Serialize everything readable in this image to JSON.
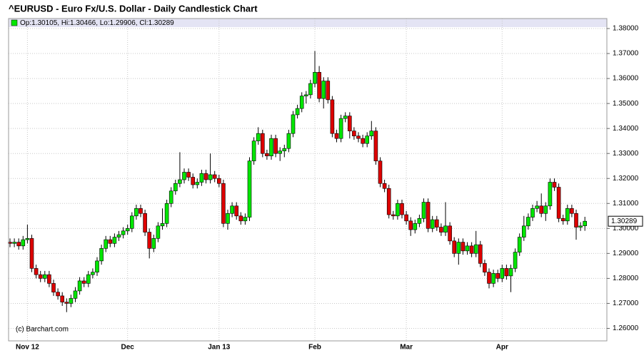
{
  "chart_data": {
    "type": "candlestick",
    "title": "^EURUSD - Euro Fx/U.S. Dollar - Daily Candlestick Chart",
    "legend_label": "Op:1.30105, Hi:1.30466, Lo:1.29906, Cl:1.30289",
    "credit": "(c) Barchart.com",
    "up_color": "#00e600",
    "down_color": "#dd0000",
    "ylim": [
      1.255,
      1.384
    ],
    "yticks": [
      {
        "value": 1.26,
        "label": "1.26000"
      },
      {
        "value": 1.27,
        "label": "1.27000"
      },
      {
        "value": 1.28,
        "label": "1.28000"
      },
      {
        "value": 1.29,
        "label": "1.29000"
      },
      {
        "value": 1.3,
        "label": "1.30000"
      },
      {
        "value": 1.31,
        "label": "1.31000"
      },
      {
        "value": 1.32,
        "label": "1.32000"
      },
      {
        "value": 1.33,
        "label": "1.33000"
      },
      {
        "value": 1.34,
        "label": "1.34000"
      },
      {
        "value": 1.35,
        "label": "1.35000"
      },
      {
        "value": 1.36,
        "label": "1.36000"
      },
      {
        "value": 1.37,
        "label": "1.37000"
      },
      {
        "value": 1.38,
        "label": "1.38000"
      }
    ],
    "grid": true,
    "categories": [
      null,
      null,
      null,
      null,
      "Nov 12",
      null,
      null,
      null,
      null,
      null,
      null,
      null,
      null,
      null,
      null,
      null,
      null,
      null,
      null,
      null,
      null,
      null,
      null,
      null,
      null,
      null,
      null,
      "Dec",
      null,
      null,
      null,
      null,
      null,
      null,
      null,
      null,
      null,
      null,
      null,
      null,
      null,
      null,
      null,
      null,
      null,
      null,
      null,
      null,
      "Jan 13",
      null,
      null,
      null,
      null,
      null,
      null,
      null,
      null,
      null,
      null,
      null,
      null,
      null,
      null,
      null,
      null,
      null,
      null,
      null,
      null,
      null,
      "Feb",
      null,
      null,
      null,
      null,
      null,
      null,
      null,
      null,
      null,
      null,
      null,
      null,
      null,
      null,
      null,
      null,
      null,
      null,
      null,
      null,
      "Mar",
      null,
      null,
      null,
      null,
      null,
      null,
      null,
      null,
      null,
      null,
      null,
      null,
      null,
      null,
      null,
      null,
      null,
      null,
      null,
      null,
      null,
      "Apr",
      null,
      null,
      null,
      null,
      null,
      null,
      null,
      null,
      null,
      null,
      null,
      null,
      null,
      null,
      null,
      null,
      null,
      null,
      null
    ],
    "open": [
      1.2945,
      1.294,
      1.2945,
      1.293,
      1.2955,
      1.296,
      1.284,
      1.2815,
      1.28,
      1.2815,
      1.278,
      1.2745,
      1.273,
      1.2705,
      1.27,
      1.272,
      1.275,
      1.279,
      1.278,
      1.2815,
      1.2825,
      1.287,
      1.292,
      1.2955,
      1.294,
      1.2965,
      1.2975,
      1.299,
      1.3,
      1.305,
      1.308,
      1.306,
      1.2985,
      1.292,
      1.296,
      1.301,
      1.302,
      1.31,
      1.315,
      1.318,
      1.3195,
      1.3225,
      1.3205,
      1.3175,
      1.3185,
      1.322,
      1.3195,
      1.3215,
      1.32,
      1.318,
      1.302,
      1.306,
      1.309,
      1.305,
      1.303,
      1.3045,
      1.327,
      1.335,
      1.338,
      1.33,
      1.329,
      1.336,
      1.33,
      1.331,
      1.332,
      1.338,
      1.3455,
      1.348,
      1.353,
      1.3535,
      1.358,
      1.3625,
      1.352,
      1.359,
      1.3515,
      1.338,
      1.336,
      1.344,
      1.345,
      1.339,
      1.337,
      1.336,
      1.334,
      1.337,
      1.339,
      1.327,
      1.318,
      1.316,
      1.3055,
      1.305,
      1.31,
      1.3055,
      1.303,
      1.2995,
      1.302,
      1.304,
      1.3105,
      1.3,
      1.3035,
      1.3005,
      1.2985,
      1.301,
      1.295,
      1.29,
      1.2945,
      1.291,
      1.293,
      1.29,
      1.2935,
      1.286,
      1.2825,
      1.278,
      1.282,
      1.28,
      1.284,
      1.281,
      1.284,
      1.2905,
      1.2965,
      1.301,
      1.3045,
      1.308,
      1.309,
      1.306,
      1.309,
      1.3185,
      1.3165,
      1.304,
      1.303,
      1.308,
      1.306,
      1.3005,
      1.30105
    ],
    "high": [
      1.296,
      1.296,
      1.296,
      1.297,
      1.3015,
      1.2975,
      1.2855,
      1.283,
      1.283,
      1.283,
      1.2795,
      1.276,
      1.2745,
      1.272,
      1.2735,
      1.2765,
      1.2805,
      1.2805,
      1.283,
      1.284,
      1.2885,
      1.2935,
      1.297,
      1.297,
      1.298,
      1.299,
      1.3005,
      1.3015,
      1.3065,
      1.3095,
      1.3095,
      1.3075,
      1.3,
      1.2975,
      1.3025,
      1.308,
      1.3115,
      1.3165,
      1.3195,
      1.3305,
      1.324,
      1.324,
      1.322,
      1.32,
      1.3235,
      1.3235,
      1.33,
      1.323,
      1.3215,
      1.3195,
      1.3075,
      1.3105,
      1.3105,
      1.3065,
      1.306,
      1.3285,
      1.3365,
      1.3405,
      1.3395,
      1.3315,
      1.3375,
      1.3375,
      1.3325,
      1.3335,
      1.3395,
      1.347,
      1.3495,
      1.3545,
      1.355,
      1.3595,
      1.371,
      1.365,
      1.3605,
      1.3605,
      1.353,
      1.3395,
      1.3455,
      1.3465,
      1.3465,
      1.3405,
      1.3385,
      1.3375,
      1.3385,
      1.343,
      1.3405,
      1.3285,
      1.3195,
      1.3175,
      1.307,
      1.3115,
      1.3115,
      1.307,
      1.3045,
      1.3035,
      1.3055,
      1.312,
      1.312,
      1.305,
      1.305,
      1.302,
      1.3105,
      1.3025,
      1.2965,
      1.296,
      1.296,
      1.2945,
      1.2945,
      1.299,
      1.295,
      1.2875,
      1.284,
      1.2835,
      1.2835,
      1.2855,
      1.2855,
      1.2855,
      1.292,
      1.298,
      1.305,
      1.306,
      1.3095,
      1.311,
      1.314,
      1.3105,
      1.32,
      1.32,
      1.318,
      1.3055,
      1.3095,
      1.3095,
      1.3075,
      1.3025,
      1.30466
    ],
    "low": [
      1.2925,
      1.2925,
      1.2915,
      1.2915,
      1.294,
      1.2825,
      1.28,
      1.2785,
      1.2785,
      1.2765,
      1.273,
      1.2715,
      1.269,
      1.2665,
      1.2685,
      1.2705,
      1.2735,
      1.2765,
      1.2765,
      1.28,
      1.281,
      1.2855,
      1.2905,
      1.2925,
      1.2925,
      1.295,
      1.296,
      1.2975,
      1.2985,
      1.3035,
      1.3045,
      1.297,
      1.288,
      1.2905,
      1.2945,
      1.2995,
      1.3005,
      1.3085,
      1.3135,
      1.3165,
      1.318,
      1.319,
      1.316,
      1.316,
      1.317,
      1.318,
      1.318,
      1.3185,
      1.3165,
      1.3005,
      1.2995,
      1.3045,
      1.3035,
      1.3015,
      1.3015,
      1.303,
      1.3255,
      1.3335,
      1.3285,
      1.3275,
      1.3275,
      1.3285,
      1.327,
      1.3285,
      1.3305,
      1.3365,
      1.344,
      1.3465,
      1.35,
      1.352,
      1.3565,
      1.3505,
      1.348,
      1.35,
      1.3365,
      1.3345,
      1.3345,
      1.3425,
      1.336,
      1.3355,
      1.3345,
      1.3325,
      1.3325,
      1.3355,
      1.3255,
      1.3165,
      1.3145,
      1.304,
      1.3035,
      1.3035,
      1.304,
      1.3015,
      1.297,
      1.298,
      1.3005,
      1.3025,
      1.2985,
      1.2985,
      1.299,
      1.297,
      1.297,
      1.2935,
      1.2885,
      1.2855,
      1.2895,
      1.2895,
      1.2885,
      1.2885,
      1.2845,
      1.281,
      1.276,
      1.2765,
      1.2785,
      1.2785,
      1.2795,
      1.2745,
      1.2825,
      1.289,
      1.295,
      1.2995,
      1.303,
      1.3065,
      1.3045,
      1.303,
      1.3075,
      1.315,
      1.3025,
      1.3015,
      1.3015,
      1.3045,
      1.2955,
      1.299,
      1.29906
    ],
    "close": [
      1.294,
      1.2945,
      1.293,
      1.2955,
      1.296,
      1.284,
      1.2815,
      1.28,
      1.2815,
      1.278,
      1.2745,
      1.273,
      1.2705,
      1.27,
      1.272,
      1.275,
      1.279,
      1.278,
      1.2815,
      1.2825,
      1.287,
      1.292,
      1.2955,
      1.294,
      1.2965,
      1.2975,
      1.299,
      1.3,
      1.305,
      1.308,
      1.306,
      1.2985,
      1.292,
      1.296,
      1.301,
      1.302,
      1.31,
      1.315,
      1.318,
      1.3195,
      1.3225,
      1.3205,
      1.3175,
      1.3185,
      1.322,
      1.3195,
      1.3215,
      1.32,
      1.318,
      1.302,
      1.306,
      1.309,
      1.305,
      1.303,
      1.3045,
      1.327,
      1.335,
      1.338,
      1.33,
      1.329,
      1.336,
      1.33,
      1.331,
      1.332,
      1.338,
      1.3455,
      1.348,
      1.353,
      1.3535,
      1.358,
      1.3625,
      1.352,
      1.359,
      1.3515,
      1.338,
      1.336,
      1.344,
      1.345,
      1.339,
      1.337,
      1.336,
      1.334,
      1.337,
      1.339,
      1.327,
      1.318,
      1.316,
      1.3055,
      1.305,
      1.31,
      1.3055,
      1.303,
      1.2995,
      1.302,
      1.304,
      1.3105,
      1.3,
      1.3035,
      1.3005,
      1.2985,
      1.301,
      1.295,
      1.29,
      1.2945,
      1.291,
      1.293,
      1.29,
      1.2935,
      1.286,
      1.2825,
      1.278,
      1.282,
      1.28,
      1.284,
      1.281,
      1.284,
      1.2905,
      1.2965,
      1.301,
      1.3045,
      1.308,
      1.309,
      1.306,
      1.309,
      1.3185,
      1.3165,
      1.304,
      1.303,
      1.308,
      1.306,
      1.3005,
      1.301,
      1.30289
    ]
  }
}
